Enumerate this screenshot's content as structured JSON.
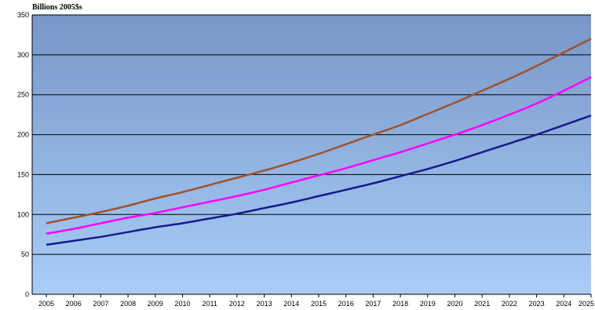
{
  "chart_data": {
    "type": "line",
    "title": "",
    "ylabel": "Billions 2005$s",
    "xlabel": "",
    "x": [
      2005,
      2006,
      2007,
      2008,
      2009,
      2010,
      2011,
      2012,
      2013,
      2014,
      2015,
      2016,
      2017,
      2018,
      2019,
      2020,
      2021,
      2022,
      2023,
      2024,
      2025
    ],
    "x_tick_labels": [
      "2005",
      "2006",
      "2007",
      "2008",
      "2009",
      "2010",
      "2011",
      "2012",
      "2013",
      "2014",
      "2015",
      "2016",
      "2017",
      "2018",
      "2019",
      "2020",
      "2021",
      "2022",
      "2023",
      "2024",
      "2025"
    ],
    "ylim": [
      0,
      350
    ],
    "y_ticks": [
      0,
      50,
      100,
      150,
      200,
      250,
      300,
      350
    ],
    "y_tick_labels": [
      "0",
      "50",
      "100",
      "150",
      "200",
      "250",
      "300",
      "350"
    ],
    "grid": "horizontal",
    "legend": "none",
    "series": [
      {
        "color": "#a0522d",
        "values": [
          89,
          96,
          103,
          111,
          120,
          128,
          137,
          146,
          155,
          165,
          176,
          188,
          200,
          212,
          226,
          240,
          255,
          270,
          286,
          303,
          320
        ]
      },
      {
        "color": "#ff00ff",
        "values": [
          76,
          82,
          89,
          96,
          102,
          109,
          116,
          123,
          131,
          140,
          149,
          158,
          168,
          178,
          189,
          200,
          212,
          225,
          239,
          255,
          272
        ]
      },
      {
        "color": "#1a1a8c",
        "values": [
          62,
          67,
          72,
          78,
          84,
          89,
          95,
          101,
          108,
          115,
          123,
          131,
          139,
          148,
          157,
          167,
          178,
          189,
          200,
          212,
          224
        ]
      }
    ],
    "colors": {
      "plot_gradient_top": "#7897c7",
      "plot_gradient_bottom": "#a9cdf7",
      "gridline": "#000000"
    }
  }
}
